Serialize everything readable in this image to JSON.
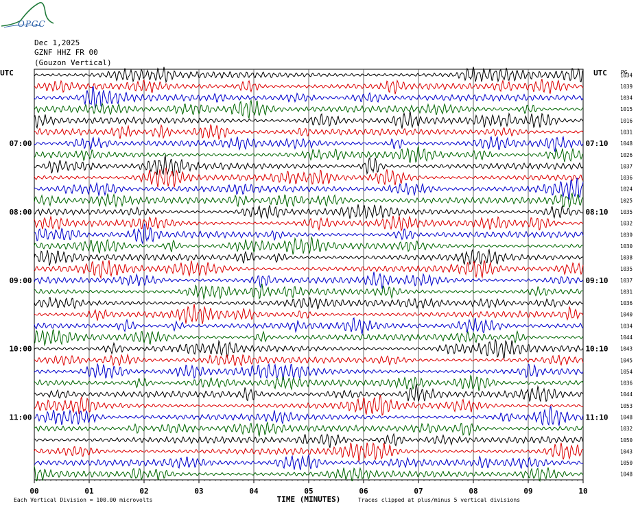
{
  "logo": {
    "text": "OPGC"
  },
  "header": {
    "date": "Dec 1,2025",
    "station": "GZNF HHZ FR 00",
    "location": "(Gouzon Vertical)"
  },
  "chart_data": {
    "type": "line",
    "title": "",
    "xlabel": "TIME (MINUTES)",
    "ylabel": "",
    "x_ticks": [
      "00",
      "01",
      "02",
      "03",
      "04",
      "05",
      "06",
      "07",
      "08",
      "09",
      "10"
    ],
    "xlim": [
      0,
      10
    ],
    "left_axis_label": "UTC",
    "right_axis_label": "UTC",
    "right_col_label": "PG",
    "left_time_labels": [
      {
        "row": 6,
        "text": "07:00"
      },
      {
        "row": 12,
        "text": "08:00"
      },
      {
        "row": 18,
        "text": "09:00"
      },
      {
        "row": 24,
        "text": "10:00"
      },
      {
        "row": 30,
        "text": "11:00"
      }
    ],
    "right_time_labels": [
      {
        "row": 6,
        "text": "07:10"
      },
      {
        "row": 12,
        "text": "08:10"
      },
      {
        "row": 18,
        "text": "09:10"
      },
      {
        "row": 24,
        "text": "10:10"
      },
      {
        "row": 30,
        "text": "11:10"
      }
    ],
    "trace_colors": [
      "#000000",
      "#dd0000",
      "#0000cc",
      "#006600"
    ],
    "row_values": [
      1034,
      1039,
      1034,
      1015,
      1016,
      1031,
      1048,
      1026,
      1037,
      1036,
      1024,
      1025,
      1035,
      1032,
      1039,
      1030,
      1038,
      1035,
      1037,
      1031,
      1036,
      1040,
      1034,
      1044,
      1043,
      1045,
      1054,
      1036,
      1044,
      1053,
      1048,
      1032,
      1050,
      1043,
      1050,
      1048
    ],
    "footer_left": "Each Vertical Division =  100.00 microvolts",
    "footer_right": "Traces clipped at plus/minus 5 vertical divisions"
  }
}
